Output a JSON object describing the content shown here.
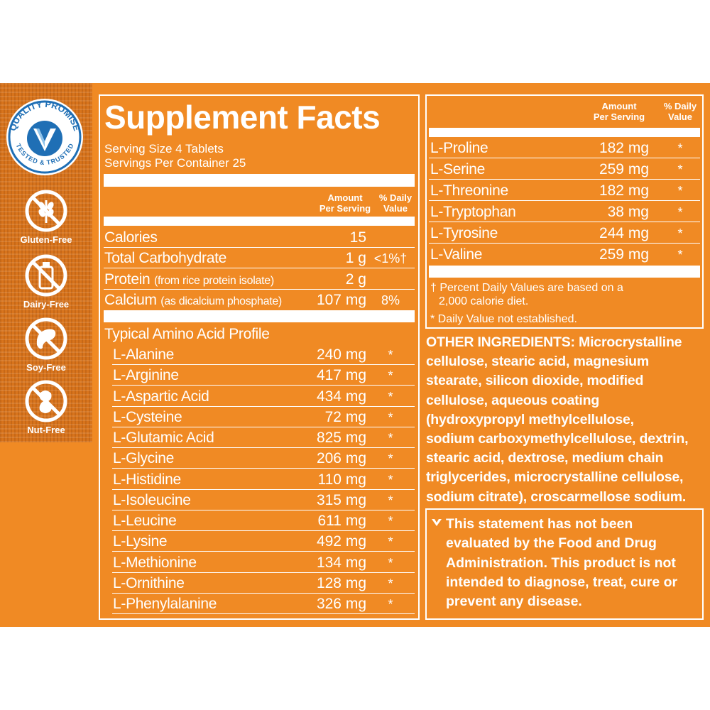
{
  "badges": {
    "quality_top": "QUALITY PROMISE",
    "quality_bottom": "TESTED & TRUSTED",
    "diets": [
      {
        "label": "Gluten-Free",
        "icon": "wheat-crossed-icon"
      },
      {
        "label": "Dairy-Free",
        "icon": "bottle-crossed-icon"
      },
      {
        "label": "Soy-Free",
        "icon": "soybean-crossed-icon"
      },
      {
        "label": "Nut-Free",
        "icon": "peanut-crossed-icon"
      }
    ]
  },
  "facts": {
    "title": "Supplement Facts",
    "serving_size": "Serving Size 4 Tablets",
    "servings_per_container": "Servings Per Container 25",
    "header_amount_1": "Amount",
    "header_amount_2": "Per Serving",
    "header_dv_1": "% Daily",
    "header_dv_2": "Value",
    "nutrients": [
      {
        "name": "Calories",
        "note": "",
        "amount": "15",
        "dv": ""
      },
      {
        "name": "Total Carbohydrate",
        "note": "",
        "amount": "1 g",
        "dv": "<1%†"
      },
      {
        "name": "Protein",
        "note": "(from rice protein isolate)",
        "amount": "2 g",
        "dv": ""
      },
      {
        "name": "Calcium",
        "note": "(as dicalcium phosphate)",
        "amount": "107 mg",
        "dv": "8%"
      }
    ],
    "profile_label": "Typical Amino Acid Profile",
    "amino_left": [
      {
        "name": "L-Alanine",
        "amount": "240 mg",
        "dv": "*"
      },
      {
        "name": "L-Arginine",
        "amount": "417 mg",
        "dv": "*"
      },
      {
        "name": "L-Aspartic Acid",
        "amount": "434 mg",
        "dv": "*"
      },
      {
        "name": "L-Cysteine",
        "amount": "72 mg",
        "dv": "*"
      },
      {
        "name": "L-Glutamic Acid",
        "amount": "825 mg",
        "dv": "*"
      },
      {
        "name": "L-Glycine",
        "amount": "206 mg",
        "dv": "*"
      },
      {
        "name": "L-Histidine",
        "amount": "110 mg",
        "dv": "*"
      },
      {
        "name": "L-Isoleucine",
        "amount": "315 mg",
        "dv": "*"
      },
      {
        "name": "L-Leucine",
        "amount": "611 mg",
        "dv": "*"
      },
      {
        "name": "L-Lysine",
        "amount": "492 mg",
        "dv": "*"
      },
      {
        "name": "L-Methionine",
        "amount": "134 mg",
        "dv": "*"
      },
      {
        "name": "L-Ornithine",
        "amount": "128 mg",
        "dv": "*"
      },
      {
        "name": "L-Phenylalanine",
        "amount": "326 mg",
        "dv": "*"
      }
    ],
    "amino_right": [
      {
        "name": "L-Proline",
        "amount": "182 mg",
        "dv": "*"
      },
      {
        "name": "L-Serine",
        "amount": "259 mg",
        "dv": "*"
      },
      {
        "name": "L-Threonine",
        "amount": "182 mg",
        "dv": "*"
      },
      {
        "name": "L-Tryptophan",
        "amount": "38 mg",
        "dv": "*"
      },
      {
        "name": "L-Tyrosine",
        "amount": "244 mg",
        "dv": "*"
      },
      {
        "name": "L-Valine",
        "amount": "259 mg",
        "dv": "*"
      }
    ],
    "footnote_1a": "† Percent Daily Values are based on a",
    "footnote_1b": "2,000 calorie diet.",
    "footnote_2": "* Daily Value not established."
  },
  "ingredients": {
    "lead": "OTHER INGREDIENTS:",
    "lines": [
      " Microcrystalline",
      "cellulose, stearic acid, magnesium",
      "stearate, silicon dioxide, modified",
      "cellulose, aqueous coating",
      "(hydroxypropyl methylcellulose,",
      "sodium carboxymethylcellulose, dextrin,",
      "stearic acid, dextrose, medium chain",
      "triglycerides, microcrystalline cellulose,",
      "sodium citrate), croscarmellose sodium."
    ]
  },
  "statement": {
    "lines": [
      "This statement has not been",
      "evaluated by the Food and Drug",
      "Administration. This product is not",
      "intended to diagnose, treat, cure or",
      "prevent any disease."
    ]
  },
  "colors": {
    "background": "#f08a24",
    "strip": "#d8741c",
    "text": "#ffffff",
    "badge_blue": "#1f6fb5"
  }
}
